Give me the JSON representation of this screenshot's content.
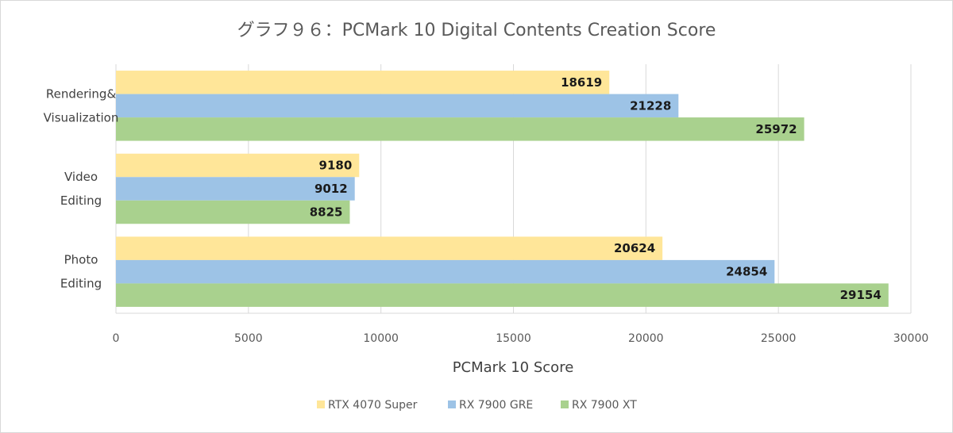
{
  "chart_data": {
    "type": "bar",
    "orientation": "horizontal",
    "title": "グラフ９６：PCMark 10 Digital Contents Creation Score",
    "xlabel": "PCMark 10 Score",
    "ylabel": "",
    "xlim": [
      0,
      30000
    ],
    "xticks": [
      0,
      5000,
      10000,
      15000,
      20000,
      25000,
      30000
    ],
    "grid": true,
    "legend_position": "bottom",
    "categories": [
      [
        "Rendering&",
        "Visualization"
      ],
      [
        "Video",
        "Editing"
      ],
      [
        "Photo",
        "Editing"
      ]
    ],
    "series": [
      {
        "name": "RTX 4070 Super",
        "color": "#ffe699",
        "values": [
          18619,
          9180,
          20624
        ]
      },
      {
        "name": "RX 7900 GRE",
        "color": "#9dc3e6",
        "values": [
          21228,
          9012,
          24854
        ]
      },
      {
        "name": "RX 7900 XT",
        "color": "#a9d18e",
        "values": [
          25972,
          8825,
          29154
        ]
      }
    ]
  }
}
